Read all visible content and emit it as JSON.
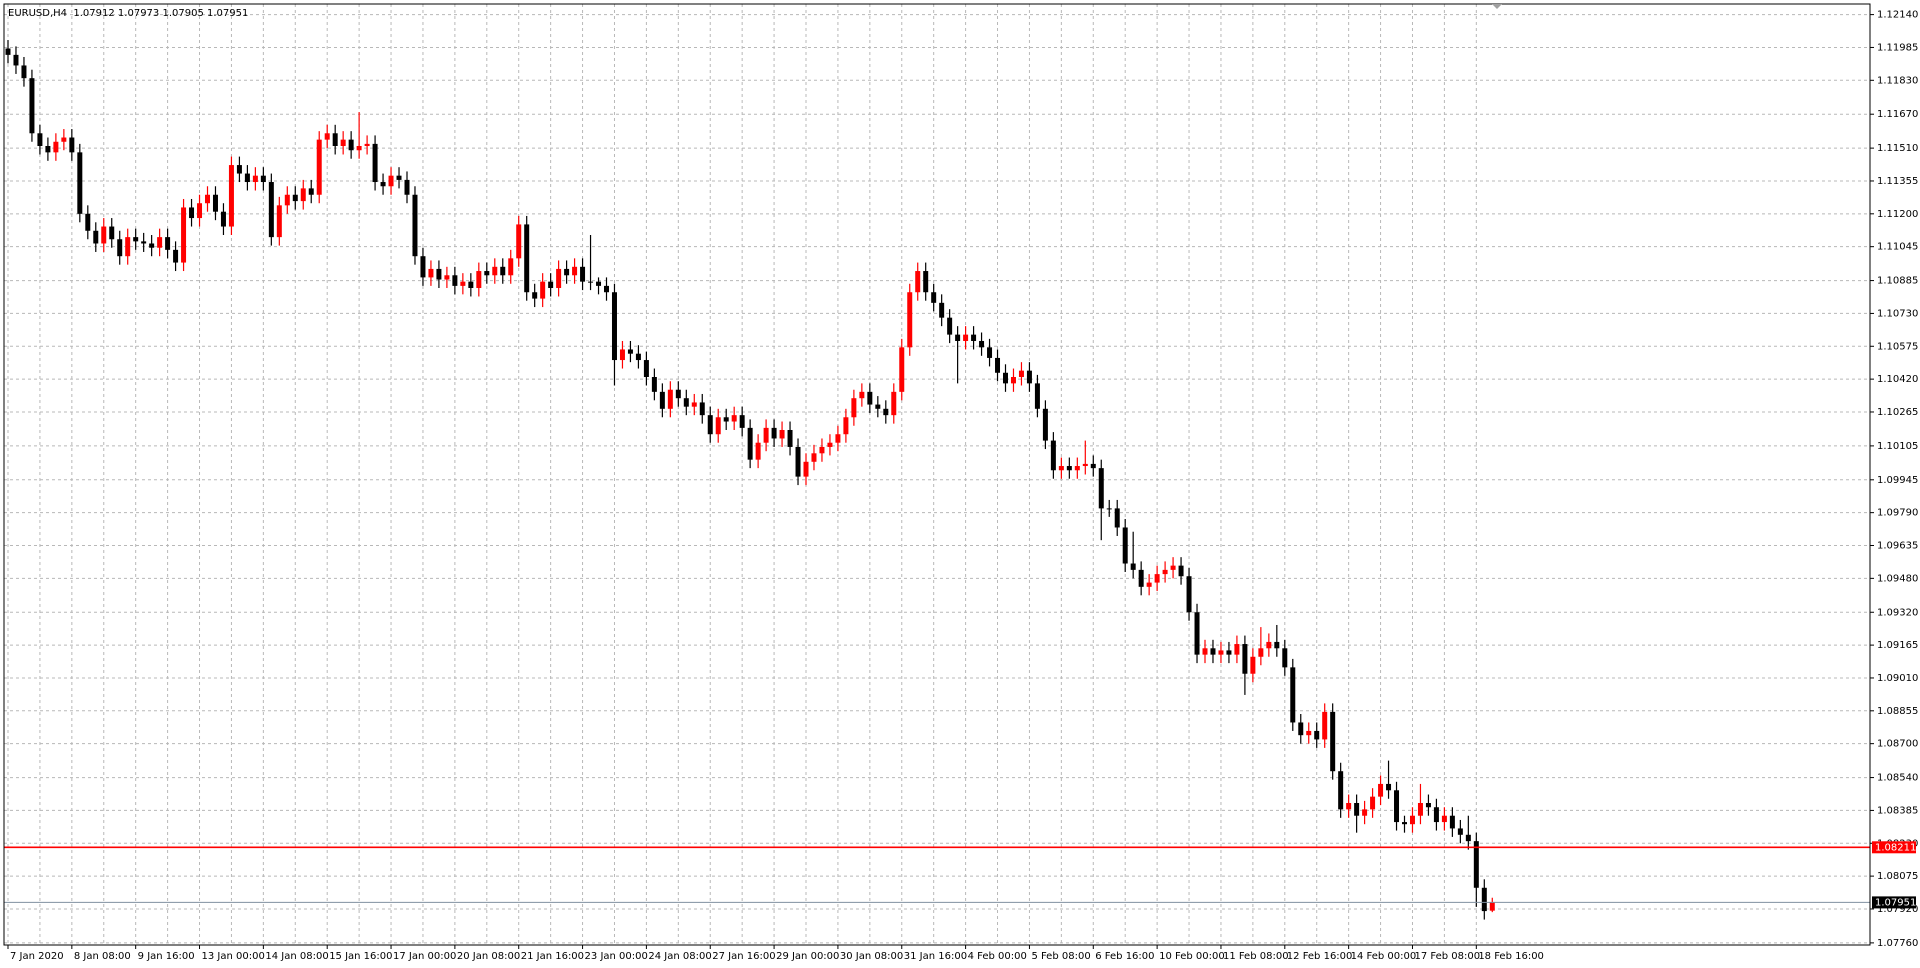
{
  "chart_data": {
    "type": "candlestick",
    "title": "EURUSD,H4",
    "up_color": "#ff0000",
    "down_color": "#000000",
    "grid": true,
    "ylim": [
      1.0775,
      1.1219
    ],
    "yticks": [
      {
        "value": 1.1214,
        "label": "1.12140"
      },
      {
        "value": 1.11985,
        "label": "1.11985"
      },
      {
        "value": 1.1183,
        "label": "1.11830"
      },
      {
        "value": 1.1167,
        "label": "1.11670"
      },
      {
        "value": 1.1151,
        "label": "1.11510"
      },
      {
        "value": 1.11355,
        "label": "1.11355"
      },
      {
        "value": 1.112,
        "label": "1.11200"
      },
      {
        "value": 1.11045,
        "label": "1.11045"
      },
      {
        "value": 1.10885,
        "label": "1.10885"
      },
      {
        "value": 1.1073,
        "label": "1.10730"
      },
      {
        "value": 1.10575,
        "label": "1.10575"
      },
      {
        "value": 1.1042,
        "label": "1.10420"
      },
      {
        "value": 1.10265,
        "label": "1.10265"
      },
      {
        "value": 1.10105,
        "label": "1.10105"
      },
      {
        "value": 1.09945,
        "label": "1.09945"
      },
      {
        "value": 1.0979,
        "label": "1.09790"
      },
      {
        "value": 1.09635,
        "label": "1.09635"
      },
      {
        "value": 1.0948,
        "label": "1.09480"
      },
      {
        "value": 1.0932,
        "label": "1.09320"
      },
      {
        "value": 1.09165,
        "label": "1.09165"
      },
      {
        "value": 1.0901,
        "label": "1.09010"
      },
      {
        "value": 1.08855,
        "label": "1.08855"
      },
      {
        "value": 1.087,
        "label": "1.08700"
      },
      {
        "value": 1.0854,
        "label": "1.08540"
      },
      {
        "value": 1.08385,
        "label": "1.08385"
      },
      {
        "value": 1.0823,
        "label": "1.08230"
      },
      {
        "value": 1.08075,
        "label": "1.08075"
      },
      {
        "value": 1.0792,
        "label": "1.07920"
      },
      {
        "value": 1.0776,
        "label": "1.07760"
      }
    ],
    "hlines": [
      {
        "value": 1.08211,
        "color": "#ff0000"
      },
      {
        "value": 1.07951,
        "color": "#000000"
      }
    ],
    "categories": [
      "7 Jan 2020",
      null,
      null,
      null,
      null,
      null,
      null,
      null,
      "8 Jan 08:00",
      null,
      null,
      null,
      null,
      null,
      null,
      null,
      "9 Jan 16:00",
      null,
      null,
      null,
      null,
      null,
      null,
      null,
      "13 Jan 00:00",
      null,
      null,
      null,
      null,
      null,
      null,
      null,
      "14 Jan 08:00",
      null,
      null,
      null,
      null,
      null,
      null,
      null,
      "15 Jan 16:00",
      null,
      null,
      null,
      null,
      null,
      null,
      null,
      "17 Jan 00:00",
      null,
      null,
      null,
      null,
      null,
      null,
      null,
      "20 Jan 08:00",
      null,
      null,
      null,
      null,
      null,
      null,
      null,
      "21 Jan 16:00",
      null,
      null,
      null,
      null,
      null,
      null,
      null,
      "23 Jan 00:00",
      null,
      null,
      null,
      null,
      null,
      null,
      null,
      "24 Jan 08:00",
      null,
      null,
      null,
      null,
      null,
      null,
      null,
      "27 Jan 16:00",
      null,
      null,
      null,
      null,
      null,
      null,
      null,
      "29 Jan 00:00",
      null,
      null,
      null,
      null,
      null,
      null,
      null,
      "30 Jan 08:00",
      null,
      null,
      null,
      null,
      null,
      null,
      null,
      "31 Jan 16:00",
      null,
      null,
      null,
      null,
      null,
      null,
      null,
      "4 Feb 00:00",
      null,
      null,
      null,
      null,
      null,
      null,
      null,
      "5 Feb 08:00",
      null,
      null,
      null,
      null,
      null,
      null,
      null,
      "6 Feb 16:00",
      null,
      null,
      null,
      null,
      null,
      null,
      null,
      "10 Feb 00:00",
      null,
      null,
      null,
      null,
      null,
      null,
      null,
      "11 Feb 08:00",
      null,
      null,
      null,
      null,
      null,
      null,
      null,
      "12 Feb 16:00",
      null,
      null,
      null,
      null,
      null,
      null,
      null,
      "14 Feb 00:00",
      null,
      null,
      null,
      null,
      null,
      null,
      null,
      "17 Feb 08:00",
      null,
      null,
      null,
      null,
      null,
      null,
      null,
      "18 Feb 16:00",
      null,
      null
    ],
    "candles": [
      [
        1.1198,
        1.1202,
        1.1191,
        1.1195
      ],
      [
        1.1195,
        1.1199,
        1.1186,
        1.119
      ],
      [
        1.119,
        1.1194,
        1.118,
        1.1184
      ],
      [
        1.1184,
        1.1188,
        1.1154,
        1.1158
      ],
      [
        1.1158,
        1.1162,
        1.1148,
        1.1152
      ],
      [
        1.1152,
        1.1156,
        1.1145,
        1.1149
      ],
      [
        1.1149,
        1.1158,
        1.1145,
        1.1154
      ],
      [
        1.1154,
        1.116,
        1.115,
        1.1156
      ],
      [
        1.1156,
        1.116,
        1.1145,
        1.1149
      ],
      [
        1.1149,
        1.1153,
        1.1116,
        1.112
      ],
      [
        1.112,
        1.1124,
        1.1108,
        1.1112
      ],
      [
        1.1112,
        1.1116,
        1.1102,
        1.1106
      ],
      [
        1.1106,
        1.1118,
        1.1102,
        1.1114
      ],
      [
        1.1114,
        1.1118,
        1.1104,
        1.1108
      ],
      [
        1.1108,
        1.1112,
        1.1096,
        1.11
      ],
      [
        1.11,
        1.1113,
        1.1096,
        1.1109
      ],
      [
        1.1109,
        1.1113,
        1.1103,
        1.1107
      ],
      [
        1.1107,
        1.1111,
        1.1102,
        1.1106
      ],
      [
        1.1106,
        1.111,
        1.11,
        1.1104
      ],
      [
        1.1104,
        1.1113,
        1.11,
        1.1109
      ],
      [
        1.1109,
        1.1113,
        1.1099,
        1.1103
      ],
      [
        1.1103,
        1.1107,
        1.1093,
        1.1097
      ],
      [
        1.1097,
        1.1127,
        1.1093,
        1.1123
      ],
      [
        1.1123,
        1.1127,
        1.1114,
        1.1118
      ],
      [
        1.1118,
        1.1129,
        1.1114,
        1.1125
      ],
      [
        1.1125,
        1.1133,
        1.1121,
        1.1129
      ],
      [
        1.1129,
        1.1133,
        1.1117,
        1.1121
      ],
      [
        1.1121,
        1.1125,
        1.111,
        1.1114
      ],
      [
        1.1114,
        1.1147,
        1.111,
        1.1143
      ],
      [
        1.1143,
        1.1147,
        1.1135,
        1.1139
      ],
      [
        1.1139,
        1.1143,
        1.1131,
        1.1135
      ],
      [
        1.1135,
        1.1142,
        1.1131,
        1.1138
      ],
      [
        1.1138,
        1.1142,
        1.1131,
        1.1135
      ],
      [
        1.1135,
        1.1139,
        1.1105,
        1.1109
      ],
      [
        1.1109,
        1.1128,
        1.1105,
        1.1124
      ],
      [
        1.1124,
        1.1133,
        1.112,
        1.1129
      ],
      [
        1.1129,
        1.1133,
        1.1122,
        1.1126
      ],
      [
        1.1126,
        1.1136,
        1.1122,
        1.1132
      ],
      [
        1.1132,
        1.1136,
        1.1125,
        1.1129
      ],
      [
        1.1129,
        1.1159,
        1.1125,
        1.1155
      ],
      [
        1.1155,
        1.1162,
        1.1151,
        1.1158
      ],
      [
        1.1158,
        1.1162,
        1.1148,
        1.1152
      ],
      [
        1.1152,
        1.1159,
        1.1148,
        1.1155
      ],
      [
        1.1155,
        1.1159,
        1.1146,
        1.115
      ],
      [
        1.115,
        1.1168,
        1.1146,
        1.1152
      ],
      [
        1.1152,
        1.1157,
        1.1148,
        1.1153
      ],
      [
        1.1153,
        1.1157,
        1.1131,
        1.1135
      ],
      [
        1.1135,
        1.1139,
        1.1129,
        1.1133
      ],
      [
        1.1133,
        1.1142,
        1.1129,
        1.1138
      ],
      [
        1.1138,
        1.1142,
        1.1132,
        1.1136
      ],
      [
        1.1136,
        1.114,
        1.1125,
        1.1129
      ],
      [
        1.1129,
        1.1133,
        1.1096,
        1.11
      ],
      [
        1.11,
        1.1104,
        1.1086,
        1.109
      ],
      [
        1.109,
        1.1098,
        1.1086,
        1.1094
      ],
      [
        1.1094,
        1.1098,
        1.1085,
        1.1089
      ],
      [
        1.1089,
        1.1095,
        1.1085,
        1.1091
      ],
      [
        1.1091,
        1.1095,
        1.1082,
        1.1086
      ],
      [
        1.1086,
        1.1092,
        1.1082,
        1.1088
      ],
      [
        1.1088,
        1.1092,
        1.1081,
        1.1085
      ],
      [
        1.1085,
        1.1097,
        1.1081,
        1.1093
      ],
      [
        1.1093,
        1.1097,
        1.1087,
        1.1091
      ],
      [
        1.1091,
        1.1099,
        1.1087,
        1.1095
      ],
      [
        1.1095,
        1.1099,
        1.1087,
        1.1091
      ],
      [
        1.1091,
        1.1103,
        1.1087,
        1.1099
      ],
      [
        1.1099,
        1.1119,
        1.1095,
        1.1115
      ],
      [
        1.1115,
        1.1119,
        1.1079,
        1.1083
      ],
      [
        1.1083,
        1.1087,
        1.1076,
        1.108
      ],
      [
        1.108,
        1.1092,
        1.1076,
        1.1088
      ],
      [
        1.1088,
        1.1092,
        1.1081,
        1.1085
      ],
      [
        1.1085,
        1.1098,
        1.1081,
        1.1094
      ],
      [
        1.1094,
        1.1098,
        1.1087,
        1.1091
      ],
      [
        1.1091,
        1.1099,
        1.1087,
        1.1095
      ],
      [
        1.1095,
        1.1099,
        1.1084,
        1.1088
      ],
      [
        1.1088,
        1.111,
        1.1084,
        1.1088
      ],
      [
        1.1088,
        1.109,
        1.1082,
        1.1086
      ],
      [
        1.1086,
        1.109,
        1.1079,
        1.1083
      ],
      [
        1.1083,
        1.1087,
        1.1039,
        1.1051
      ],
      [
        1.1051,
        1.106,
        1.1047,
        1.1056
      ],
      [
        1.1056,
        1.106,
        1.105,
        1.1054
      ],
      [
        1.1054,
        1.1058,
        1.1047,
        1.1051
      ],
      [
        1.1051,
        1.1055,
        1.1039,
        1.1043
      ],
      [
        1.1043,
        1.1047,
        1.1032,
        1.1036
      ],
      [
        1.1036,
        1.104,
        1.1024,
        1.1028
      ],
      [
        1.1028,
        1.1041,
        1.1024,
        1.1037
      ],
      [
        1.1037,
        1.1041,
        1.1029,
        1.1033
      ],
      [
        1.1033,
        1.1037,
        1.1025,
        1.1029
      ],
      [
        1.1029,
        1.1035,
        1.1025,
        1.1031
      ],
      [
        1.1031,
        1.1035,
        1.1021,
        1.1025
      ],
      [
        1.1025,
        1.1029,
        1.1012,
        1.1016
      ],
      [
        1.1016,
        1.1028,
        1.1012,
        1.1024
      ],
      [
        1.1024,
        1.1028,
        1.1018,
        1.1022
      ],
      [
        1.1022,
        1.1029,
        1.1018,
        1.1025
      ],
      [
        1.1025,
        1.1029,
        1.1015,
        1.1019
      ],
      [
        1.1019,
        1.1023,
        1.1,
        1.1004
      ],
      [
        1.1004,
        1.1016,
        1.1,
        1.1012
      ],
      [
        1.1012,
        1.1023,
        1.1008,
        1.1019
      ],
      [
        1.1019,
        1.1023,
        1.101,
        1.1014
      ],
      [
        1.1014,
        1.1022,
        1.101,
        1.1018
      ],
      [
        1.1018,
        1.1022,
        1.1006,
        1.101
      ],
      [
        1.101,
        1.1014,
        1.0992,
        1.0996
      ],
      [
        1.0996,
        1.1007,
        1.0992,
        1.1003
      ],
      [
        1.1003,
        1.1011,
        1.0999,
        1.1007
      ],
      [
        1.1007,
        1.1014,
        1.1003,
        1.101
      ],
      [
        1.101,
        1.1016,
        1.1006,
        1.1012
      ],
      [
        1.1012,
        1.102,
        1.1008,
        1.1016
      ],
      [
        1.1016,
        1.1028,
        1.1012,
        1.1024
      ],
      [
        1.1024,
        1.1037,
        1.102,
        1.1033
      ],
      [
        1.1033,
        1.104,
        1.1029,
        1.1036
      ],
      [
        1.1036,
        1.104,
        1.1026,
        1.103
      ],
      [
        1.103,
        1.1034,
        1.1024,
        1.1028
      ],
      [
        1.1028,
        1.1032,
        1.1021,
        1.1025
      ],
      [
        1.1025,
        1.104,
        1.1021,
        1.1036
      ],
      [
        1.1036,
        1.1061,
        1.1032,
        1.1057
      ],
      [
        1.1057,
        1.1087,
        1.1053,
        1.1083
      ],
      [
        1.1083,
        1.1097,
        1.1079,
        1.1093
      ],
      [
        1.1093,
        1.1097,
        1.1079,
        1.1083
      ],
      [
        1.1083,
        1.1087,
        1.1074,
        1.1078
      ],
      [
        1.1078,
        1.1082,
        1.1067,
        1.1071
      ],
      [
        1.1071,
        1.1075,
        1.1059,
        1.1063
      ],
      [
        1.1063,
        1.1067,
        1.104,
        1.106
      ],
      [
        1.106,
        1.1067,
        1.1056,
        1.1063
      ],
      [
        1.1063,
        1.1067,
        1.1056,
        1.106
      ],
      [
        1.106,
        1.1064,
        1.1053,
        1.1057
      ],
      [
        1.1057,
        1.1061,
        1.1048,
        1.1052
      ],
      [
        1.1052,
        1.1056,
        1.1041,
        1.1045
      ],
      [
        1.1045,
        1.1049,
        1.1036,
        1.104
      ],
      [
        1.104,
        1.1047,
        1.1036,
        1.1043
      ],
      [
        1.1043,
        1.105,
        1.1039,
        1.1046
      ],
      [
        1.1046,
        1.105,
        1.1036,
        1.104
      ],
      [
        1.104,
        1.1044,
        1.1024,
        1.1028
      ],
      [
        1.1028,
        1.1032,
        1.1009,
        1.1013
      ],
      [
        1.1013,
        1.1017,
        1.0995,
        1.0999
      ],
      [
        1.0999,
        1.1005,
        1.0995,
        1.1001
      ],
      [
        1.1001,
        1.1005,
        1.0995,
        1.0999
      ],
      [
        1.0999,
        1.1005,
        1.0995,
        1.1001
      ],
      [
        1.1001,
        1.1013,
        1.0997,
        1.1002
      ],
      [
        1.1002,
        1.1006,
        1.0996,
        1.1
      ],
      [
        1.1,
        1.1004,
        1.0966,
        1.0981
      ],
      [
        1.0981,
        1.0985,
        1.0977,
        1.0981
      ],
      [
        1.0981,
        1.0985,
        1.0968,
        1.0972
      ],
      [
        1.0972,
        1.0976,
        1.0951,
        1.0955
      ],
      [
        1.0955,
        1.097,
        1.0948,
        1.0952
      ],
      [
        1.0952,
        1.0956,
        1.094,
        1.0944
      ],
      [
        1.0944,
        1.095,
        1.094,
        1.0946
      ],
      [
        1.0946,
        1.0954,
        1.0942,
        1.095
      ],
      [
        1.095,
        1.0956,
        1.0946,
        1.0952
      ],
      [
        1.0952,
        1.0958,
        1.0948,
        1.0954
      ],
      [
        1.0954,
        1.0958,
        1.0945,
        1.0949
      ],
      [
        1.0949,
        1.0953,
        1.0928,
        1.0932
      ],
      [
        1.0932,
        1.0936,
        1.0908,
        1.0912
      ],
      [
        1.0912,
        1.0919,
        1.0908,
        1.0915
      ],
      [
        1.0915,
        1.0919,
        1.0908,
        1.0912
      ],
      [
        1.0912,
        1.0918,
        1.0908,
        1.0914
      ],
      [
        1.0914,
        1.0918,
        1.0908,
        1.0912
      ],
      [
        1.0912,
        1.0921,
        1.0908,
        1.0917
      ],
      [
        1.0917,
        1.0921,
        1.0893,
        1.0903
      ],
      [
        1.0903,
        1.0915,
        1.0899,
        1.0911
      ],
      [
        1.0911,
        1.0925,
        1.0907,
        1.0915
      ],
      [
        1.0915,
        1.0922,
        1.0911,
        1.0918
      ],
      [
        1.0918,
        1.0926,
        1.0911,
        1.0915
      ],
      [
        1.0915,
        1.0919,
        1.0902,
        1.0906
      ],
      [
        1.0906,
        1.091,
        1.0876,
        1.088
      ],
      [
        1.088,
        1.0884,
        1.087,
        1.0874
      ],
      [
        1.0874,
        1.088,
        1.087,
        1.0876
      ],
      [
        1.0876,
        1.088,
        1.0868,
        1.0872
      ],
      [
        1.0872,
        1.0889,
        1.0868,
        1.0885
      ],
      [
        1.0885,
        1.0889,
        1.0853,
        1.0857
      ],
      [
        1.0857,
        1.0861,
        1.0835,
        1.0839
      ],
      [
        1.0839,
        1.0846,
        1.0835,
        1.0842
      ],
      [
        1.0842,
        1.0846,
        1.0828,
        1.0836
      ],
      [
        1.0836,
        1.0843,
        1.0832,
        1.0839
      ],
      [
        1.0839,
        1.0849,
        1.0835,
        1.0845
      ],
      [
        1.0845,
        1.0855,
        1.0841,
        1.0851
      ],
      [
        1.0851,
        1.0862,
        1.0844,
        1.0848
      ],
      [
        1.0848,
        1.0852,
        1.0829,
        1.0833
      ],
      [
        1.0833,
        1.0836,
        1.0828,
        1.0832
      ],
      [
        1.0832,
        1.084,
        1.0828,
        1.0836
      ],
      [
        1.0836,
        1.0851,
        1.0832,
        1.0842
      ],
      [
        1.0842,
        1.0846,
        1.0836,
        1.084
      ],
      [
        1.084,
        1.0844,
        1.0829,
        1.0833
      ],
      [
        1.0833,
        1.084,
        1.0829,
        1.0836
      ],
      [
        1.0836,
        1.084,
        1.0826,
        1.083
      ],
      [
        1.083,
        1.0834,
        1.0823,
        1.0827
      ],
      [
        1.0827,
        1.0836,
        1.082,
        1.0824
      ],
      [
        1.0824,
        1.0828,
        1.0793,
        1.0802
      ],
      [
        1.0802,
        1.0806,
        1.0787,
        1.0791
      ],
      [
        1.07912,
        1.07973,
        1.07905,
        1.07951
      ]
    ]
  }
}
